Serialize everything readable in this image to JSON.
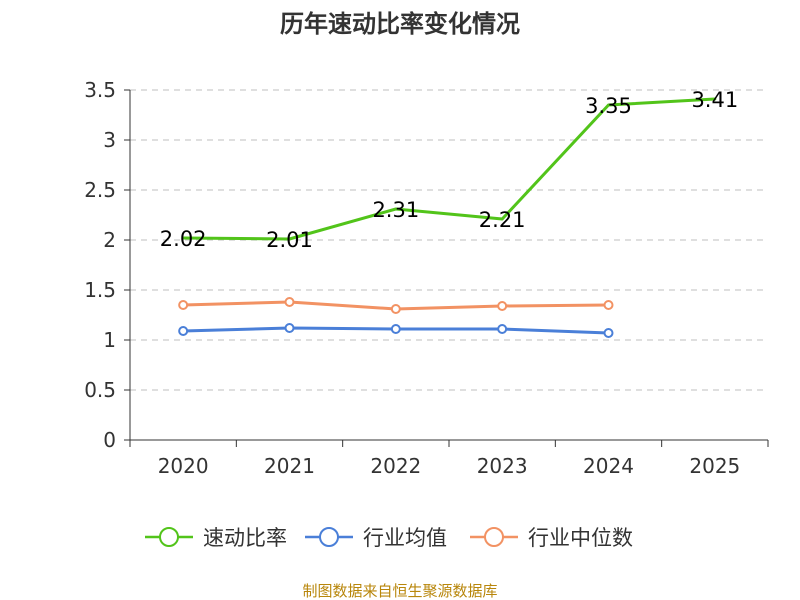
{
  "chart_data": {
    "type": "line",
    "title": "历年速动比率变化情况",
    "categories": [
      "2020",
      "2021",
      "2022",
      "2023",
      "2024",
      "2025"
    ],
    "ylim": [
      0,
      3.5
    ],
    "yticks": [
      0,
      0.5,
      1,
      1.5,
      2,
      2.5,
      3,
      3.5
    ],
    "ytick_labels": [
      "0",
      "0.5",
      "1",
      "1.5",
      "2",
      "2.5",
      "3",
      "3.5"
    ],
    "grid": true,
    "legend_position": "bottom",
    "series": [
      {
        "name": "速动比率",
        "color": "#52c41a",
        "values": [
          2.02,
          2.01,
          2.31,
          2.21,
          3.35,
          3.41
        ],
        "labels": [
          "2.02",
          "2.01",
          "2.31",
          "2.21",
          "3.35",
          "3.41"
        ],
        "show_markers": false
      },
      {
        "name": "行业均值",
        "color": "#4a7fd8",
        "values": [
          1.09,
          1.12,
          1.11,
          1.11,
          1.07,
          null
        ],
        "show_markers": true
      },
      {
        "name": "行业中位数",
        "color": "#f29263",
        "values": [
          1.35,
          1.38,
          1.31,
          1.34,
          1.35,
          null
        ],
        "show_markers": true
      }
    ],
    "source_note": "制图数据来自恒生聚源数据库"
  }
}
